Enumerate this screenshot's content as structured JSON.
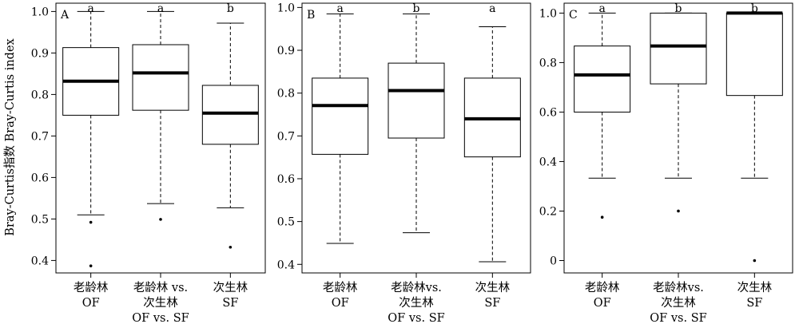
{
  "figure": {
    "ylabel": "Bray-Curtis指数 Bray-Curtis index"
  },
  "chart_data": [
    {
      "type": "box",
      "panel_label": "A",
      "ylim": [
        0.37,
        1.02
      ],
      "yticks": [
        "0.4",
        "0.5",
        "0.6",
        "0.7",
        "0.8",
        "0.9",
        "1.0"
      ],
      "grid": false,
      "categories": [
        {
          "lines": [
            "老龄林",
            "OF"
          ]
        },
        {
          "lines": [
            "老龄林 vs.",
            "次生林",
            "OF vs. SF"
          ]
        },
        {
          "lines": [
            "次生林",
            "SF"
          ]
        }
      ],
      "boxes": [
        {
          "letter": "a",
          "min": 0.51,
          "q1": 0.75,
          "median": 0.832,
          "q3": 0.913,
          "max": 1.0,
          "outliers": [
            0.492,
            0.387
          ]
        },
        {
          "letter": "a",
          "min": 0.537,
          "q1": 0.762,
          "median": 0.852,
          "q3": 0.92,
          "max": 1.0,
          "outliers": [
            0.499
          ]
        },
        {
          "letter": "b",
          "min": 0.527,
          "q1": 0.68,
          "median": 0.755,
          "q3": 0.822,
          "max": 0.972,
          "outliers": [
            0.432
          ]
        }
      ]
    },
    {
      "type": "box",
      "panel_label": "B",
      "ylim": [
        0.38,
        1.01
      ],
      "yticks": [
        "0.4",
        "0.5",
        "0.6",
        "0.7",
        "0.8",
        "0.9",
        "1.0"
      ],
      "grid": false,
      "categories": [
        {
          "lines": [
            "老龄林",
            "OF"
          ]
        },
        {
          "lines": [
            "老龄林vs.",
            "次生林",
            "OF vs. SF"
          ]
        },
        {
          "lines": [
            "次生林",
            "SF"
          ]
        }
      ],
      "boxes": [
        {
          "letter": "a",
          "min": 0.449,
          "q1": 0.657,
          "median": 0.771,
          "q3": 0.835,
          "max": 0.985,
          "outliers": []
        },
        {
          "letter": "b",
          "min": 0.474,
          "q1": 0.695,
          "median": 0.806,
          "q3": 0.87,
          "max": 0.985,
          "outliers": []
        },
        {
          "letter": "a",
          "min": 0.406,
          "q1": 0.651,
          "median": 0.74,
          "q3": 0.835,
          "max": 0.955,
          "outliers": []
        }
      ]
    },
    {
      "type": "box",
      "panel_label": "C",
      "ylim": [
        -0.05,
        1.04
      ],
      "yticks": [
        "0",
        "0.2",
        "0.4",
        "0.6",
        "0.8",
        "1.0"
      ],
      "grid": false,
      "categories": [
        {
          "lines": [
            "老龄林",
            "OF"
          ]
        },
        {
          "lines": [
            "老龄林vs.",
            "次生林",
            "OF vs. SF"
          ]
        },
        {
          "lines": [
            "次生林",
            "SF"
          ]
        }
      ],
      "boxes": [
        {
          "letter": "a",
          "min": 0.333,
          "q1": 0.6,
          "median": 0.75,
          "q3": 0.867,
          "max": 1.0,
          "outliers": [
            0.175
          ]
        },
        {
          "letter": "b",
          "min": 0.333,
          "q1": 0.714,
          "median": 0.867,
          "q3": 1.0,
          "max": 1.0,
          "outliers": [
            0.2
          ]
        },
        {
          "letter": "b",
          "min": 0.333,
          "q1": 0.667,
          "median": 1.0,
          "q3": 1.0,
          "max": 1.0,
          "outliers": [
            0.0
          ]
        }
      ]
    }
  ]
}
